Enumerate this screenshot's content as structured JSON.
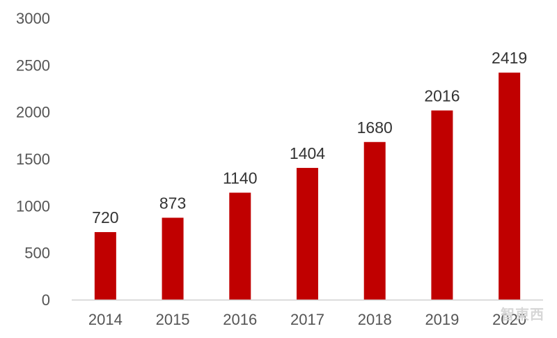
{
  "chart_data": {
    "type": "bar",
    "categories": [
      "2014",
      "2015",
      "2016",
      "2017",
      "2018",
      "2019",
      "2020"
    ],
    "values": [
      720,
      873,
      1140,
      1404,
      1680,
      2016,
      2419
    ],
    "data_labels": [
      "720",
      "873",
      "1140",
      "1404",
      "1680",
      "2016",
      "2419"
    ],
    "y_ticks": [
      "0",
      "500",
      "1000",
      "1500",
      "2000",
      "2500",
      "3000"
    ],
    "ylim": [
      0,
      3000
    ],
    "grid": false,
    "legend": "none",
    "title": "",
    "xlabel": "",
    "ylabel": "",
    "bar_color": "#c00000",
    "axis_color": "#d0d0d0"
  },
  "watermark": {
    "text": "智東西"
  }
}
